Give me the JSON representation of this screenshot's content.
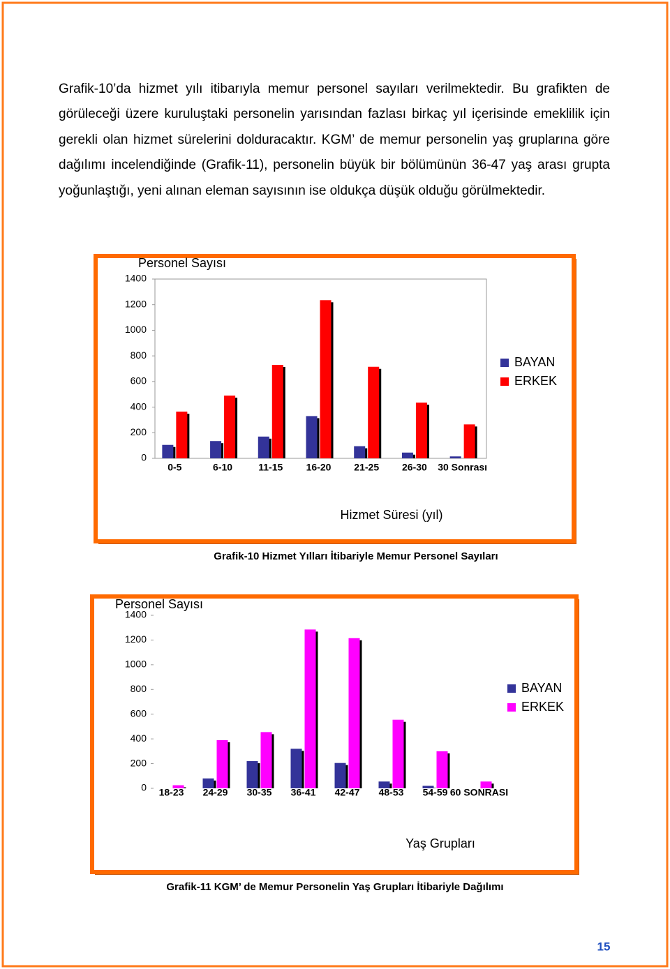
{
  "paragraph": "Grafik-10’da hizmet yılı itibarıyla memur personel sayıları verilmektedir. Bu grafikten de görüleceği üzere kuruluştaki personelin yarısından fazlası birkaç yıl içerisinde emeklilik için gerekli olan hizmet sürelerini dolduracaktır. KGM’ de memur personelin yaş gruplarına göre dağılımı incelendiğinde (Grafik-11), personelin büyük bir bölümünün 36-47 yaş arası grupta yoğunlaştığı, yeni alınan eleman sayısının ise oldukça düşük olduğu görülmektedir.",
  "chart_data": [
    {
      "type": "bar",
      "title": "Personel Sayısı",
      "x_label": "Hizmet Süresi (yıl)",
      "caption": "Grafik-10 Hizmet Yılları İtibariyle Memur Personel Sayıları",
      "categories": [
        "0-5",
        "6-10",
        "11-15",
        "16-20",
        "21-25",
        "26-30",
        "30 Sonrası"
      ],
      "series": [
        {
          "name": "BAYAN",
          "color": "#333399",
          "values": [
            105,
            135,
            170,
            330,
            95,
            45,
            15
          ]
        },
        {
          "name": "ERKEK",
          "color": "#ff0000",
          "values": [
            365,
            490,
            730,
            1235,
            715,
            435,
            265
          ]
        }
      ],
      "ylim": [
        0,
        1400
      ],
      "yticks": [
        0,
        200,
        400,
        600,
        800,
        1000,
        1200,
        1400
      ]
    },
    {
      "type": "bar",
      "title": "Personel Sayısı",
      "x_label": "Yaş Grupları",
      "caption": "Grafik-11 KGM’ de Memur Personelin Yaş Grupları İtibariyle Dağılımı",
      "categories": [
        "18-23",
        "24-29",
        "30-35",
        "36-41",
        "42-47",
        "48-53",
        "54-59",
        "60 SONRASI"
      ],
      "series": [
        {
          "name": "BAYAN",
          "color": "#333399",
          "values": [
            0,
            80,
            220,
            320,
            205,
            55,
            20,
            0
          ]
        },
        {
          "name": "ERKEK",
          "color": "#ff00ff",
          "values": [
            25,
            390,
            455,
            1285,
            1215,
            555,
            300,
            55
          ]
        }
      ],
      "ylim": [
        0,
        1400
      ],
      "yticks": [
        0,
        200,
        400,
        600,
        800,
        1000,
        1200,
        1400
      ]
    }
  ],
  "page_number": "15"
}
